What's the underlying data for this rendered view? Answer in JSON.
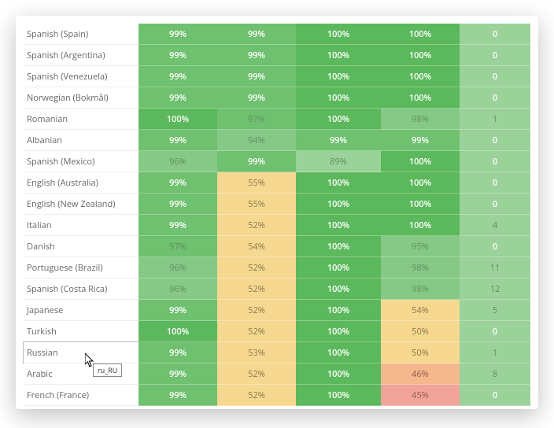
{
  "colors": {
    "green_full": "#5cb85c",
    "green_high": "#6fc06f",
    "green_mid": "#86c986",
    "green_light": "#9ad29a",
    "yellow": "#f6d891",
    "orange": "#f3b88b",
    "red": "#f2a49a",
    "label_bg": "#ffffff",
    "label_text": "#666666",
    "cell_text": "#ffffff",
    "yellow_text": "#8a7a47",
    "red_text": "#9a5a52",
    "muted_text": "#5f8f5f"
  },
  "column_widths": [
    "146px",
    "100px",
    "100px",
    "108px",
    "100px",
    "90px"
  ],
  "tooltip": {
    "text": "ru_RU"
  },
  "rows": [
    {
      "label": "Spanish (Spain)",
      "cells": [
        [
          "99%",
          "green_high"
        ],
        [
          "99%",
          "green_high"
        ],
        [
          "100%",
          "green_full"
        ],
        [
          "100%",
          "green_full"
        ],
        [
          "0",
          "green_light"
        ]
      ]
    },
    {
      "label": "Spanish (Argentina)",
      "cells": [
        [
          "99%",
          "green_high"
        ],
        [
          "99%",
          "green_high"
        ],
        [
          "100%",
          "green_full"
        ],
        [
          "100%",
          "green_full"
        ],
        [
          "0",
          "green_light"
        ]
      ]
    },
    {
      "label": "Spanish (Venezuela)",
      "cells": [
        [
          "99%",
          "green_high"
        ],
        [
          "99%",
          "green_high"
        ],
        [
          "100%",
          "green_full"
        ],
        [
          "100%",
          "green_full"
        ],
        [
          "0",
          "green_light"
        ]
      ]
    },
    {
      "label": "Norwegian (Bokmål)",
      "cells": [
        [
          "99%",
          "green_high"
        ],
        [
          "99%",
          "green_high"
        ],
        [
          "100%",
          "green_full"
        ],
        [
          "100%",
          "green_full"
        ],
        [
          "0",
          "green_light"
        ]
      ]
    },
    {
      "label": "Romanian",
      "cells": [
        [
          "100%",
          "green_full"
        ],
        [
          "97%",
          "green_high",
          "muted"
        ],
        [
          "100%",
          "green_full"
        ],
        [
          "98%",
          "green_mid",
          "muted"
        ],
        [
          "1",
          "green_light",
          "muted"
        ]
      ]
    },
    {
      "label": "Albanian",
      "cells": [
        [
          "99%",
          "green_high"
        ],
        [
          "94%",
          "green_mid",
          "muted"
        ],
        [
          "99%",
          "green_high"
        ],
        [
          "99%",
          "green_high"
        ],
        [
          "0",
          "green_light"
        ]
      ]
    },
    {
      "label": "Spanish (Mexico)",
      "cells": [
        [
          "96%",
          "green_mid",
          "muted"
        ],
        [
          "99%",
          "green_high"
        ],
        [
          "89%",
          "green_light",
          "muted"
        ],
        [
          "100%",
          "green_full"
        ],
        [
          "0",
          "green_light"
        ]
      ]
    },
    {
      "label": "English (Australia)",
      "cells": [
        [
          "99%",
          "green_high"
        ],
        [
          "55%",
          "yellow",
          "ytext"
        ],
        [
          "100%",
          "green_full"
        ],
        [
          "100%",
          "green_full"
        ],
        [
          "0",
          "green_light"
        ]
      ]
    },
    {
      "label": "English (New Zealand)",
      "cells": [
        [
          "99%",
          "green_high"
        ],
        [
          "55%",
          "yellow",
          "ytext"
        ],
        [
          "100%",
          "green_full"
        ],
        [
          "100%",
          "green_full"
        ],
        [
          "0",
          "green_light"
        ]
      ]
    },
    {
      "label": "Italian",
      "cells": [
        [
          "99%",
          "green_high"
        ],
        [
          "52%",
          "yellow",
          "ytext"
        ],
        [
          "100%",
          "green_full"
        ],
        [
          "100%",
          "green_full"
        ],
        [
          "4",
          "green_light",
          "muted"
        ]
      ]
    },
    {
      "label": "Danish",
      "cells": [
        [
          "97%",
          "green_high",
          "muted"
        ],
        [
          "54%",
          "yellow",
          "ytext"
        ],
        [
          "100%",
          "green_full"
        ],
        [
          "95%",
          "green_mid",
          "muted"
        ],
        [
          "0",
          "green_light"
        ]
      ]
    },
    {
      "label": "Portuguese (Brazil)",
      "cells": [
        [
          "96%",
          "green_mid",
          "muted"
        ],
        [
          "52%",
          "yellow",
          "ytext"
        ],
        [
          "100%",
          "green_full"
        ],
        [
          "98%",
          "green_mid",
          "muted"
        ],
        [
          "11",
          "green_light",
          "muted"
        ]
      ]
    },
    {
      "label": "Spanish (Costa Rica)",
      "cells": [
        [
          "96%",
          "green_mid",
          "muted"
        ],
        [
          "52%",
          "yellow",
          "ytext"
        ],
        [
          "100%",
          "green_full"
        ],
        [
          "98%",
          "green_mid",
          "muted"
        ],
        [
          "12",
          "green_light",
          "muted"
        ]
      ]
    },
    {
      "label": "Japanese",
      "cells": [
        [
          "99%",
          "green_high"
        ],
        [
          "52%",
          "yellow",
          "ytext"
        ],
        [
          "100%",
          "green_full"
        ],
        [
          "54%",
          "yellow",
          "ytext"
        ],
        [
          "5",
          "green_light",
          "muted"
        ]
      ]
    },
    {
      "label": "Turkish",
      "cells": [
        [
          "100%",
          "green_full"
        ],
        [
          "52%",
          "yellow",
          "ytext"
        ],
        [
          "100%",
          "green_full"
        ],
        [
          "50%",
          "yellow",
          "ytext"
        ],
        [
          "0",
          "green_light"
        ]
      ]
    },
    {
      "label": "Russian",
      "cells": [
        [
          "99%",
          "green_high"
        ],
        [
          "53%",
          "yellow",
          "ytext"
        ],
        [
          "100%",
          "green_full"
        ],
        [
          "50%",
          "yellow",
          "ytext"
        ],
        [
          "1",
          "green_light",
          "muted"
        ]
      ],
      "hover": true
    },
    {
      "label": "Arabic",
      "cells": [
        [
          "99%",
          "green_high"
        ],
        [
          "52%",
          "yellow",
          "ytext"
        ],
        [
          "100%",
          "green_full"
        ],
        [
          "46%",
          "orange",
          "rtext"
        ],
        [
          "8",
          "green_light",
          "muted"
        ]
      ]
    },
    {
      "label": "French (France)",
      "cells": [
        [
          "99%",
          "green_high"
        ],
        [
          "52%",
          "yellow",
          "ytext"
        ],
        [
          "100%",
          "green_full"
        ],
        [
          "45%",
          "red",
          "rtext"
        ],
        [
          "0",
          "green_light"
        ]
      ]
    }
  ]
}
